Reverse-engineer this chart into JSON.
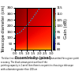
{
  "title": "Gain (dB)",
  "xlabel": "Eccentricity (pixel)",
  "ylabel": "Telescope diameter (cm)",
  "xlim": [
    0.0,
    3.0
  ],
  "ylim": [
    0,
    350
  ],
  "x_ticks": [
    0.0,
    0.5,
    1.0,
    1.5,
    2.0,
    2.5,
    3.0
  ],
  "y_ticks": [
    0,
    50,
    100,
    150,
    200,
    250,
    300,
    350
  ],
  "colorbar_min": 80,
  "colorbar_max": 115,
  "vline_x": 1.0,
  "hline_y": 200,
  "curve_color": "#00ccff",
  "vline_color": "#000000",
  "hline_color": "#000000",
  "footnote": "The blue line indicates the information rate to be transmitted for a given pointing\naccuracy. The black arrows point out that if the\npointing capacity is 1 arcel then there is no point in choosing a telescope\nwith a diameter greater than 200 cm",
  "title_fontsize": 4,
  "label_fontsize": 3.5,
  "tick_fontsize": 3,
  "colorbar_fontsize": 3,
  "colorbar_tick_step": 5,
  "curve_beta": 1.5,
  "curve_scale": 130.0,
  "gain_alpha": 2.0,
  "gain_beta": 3.0
}
